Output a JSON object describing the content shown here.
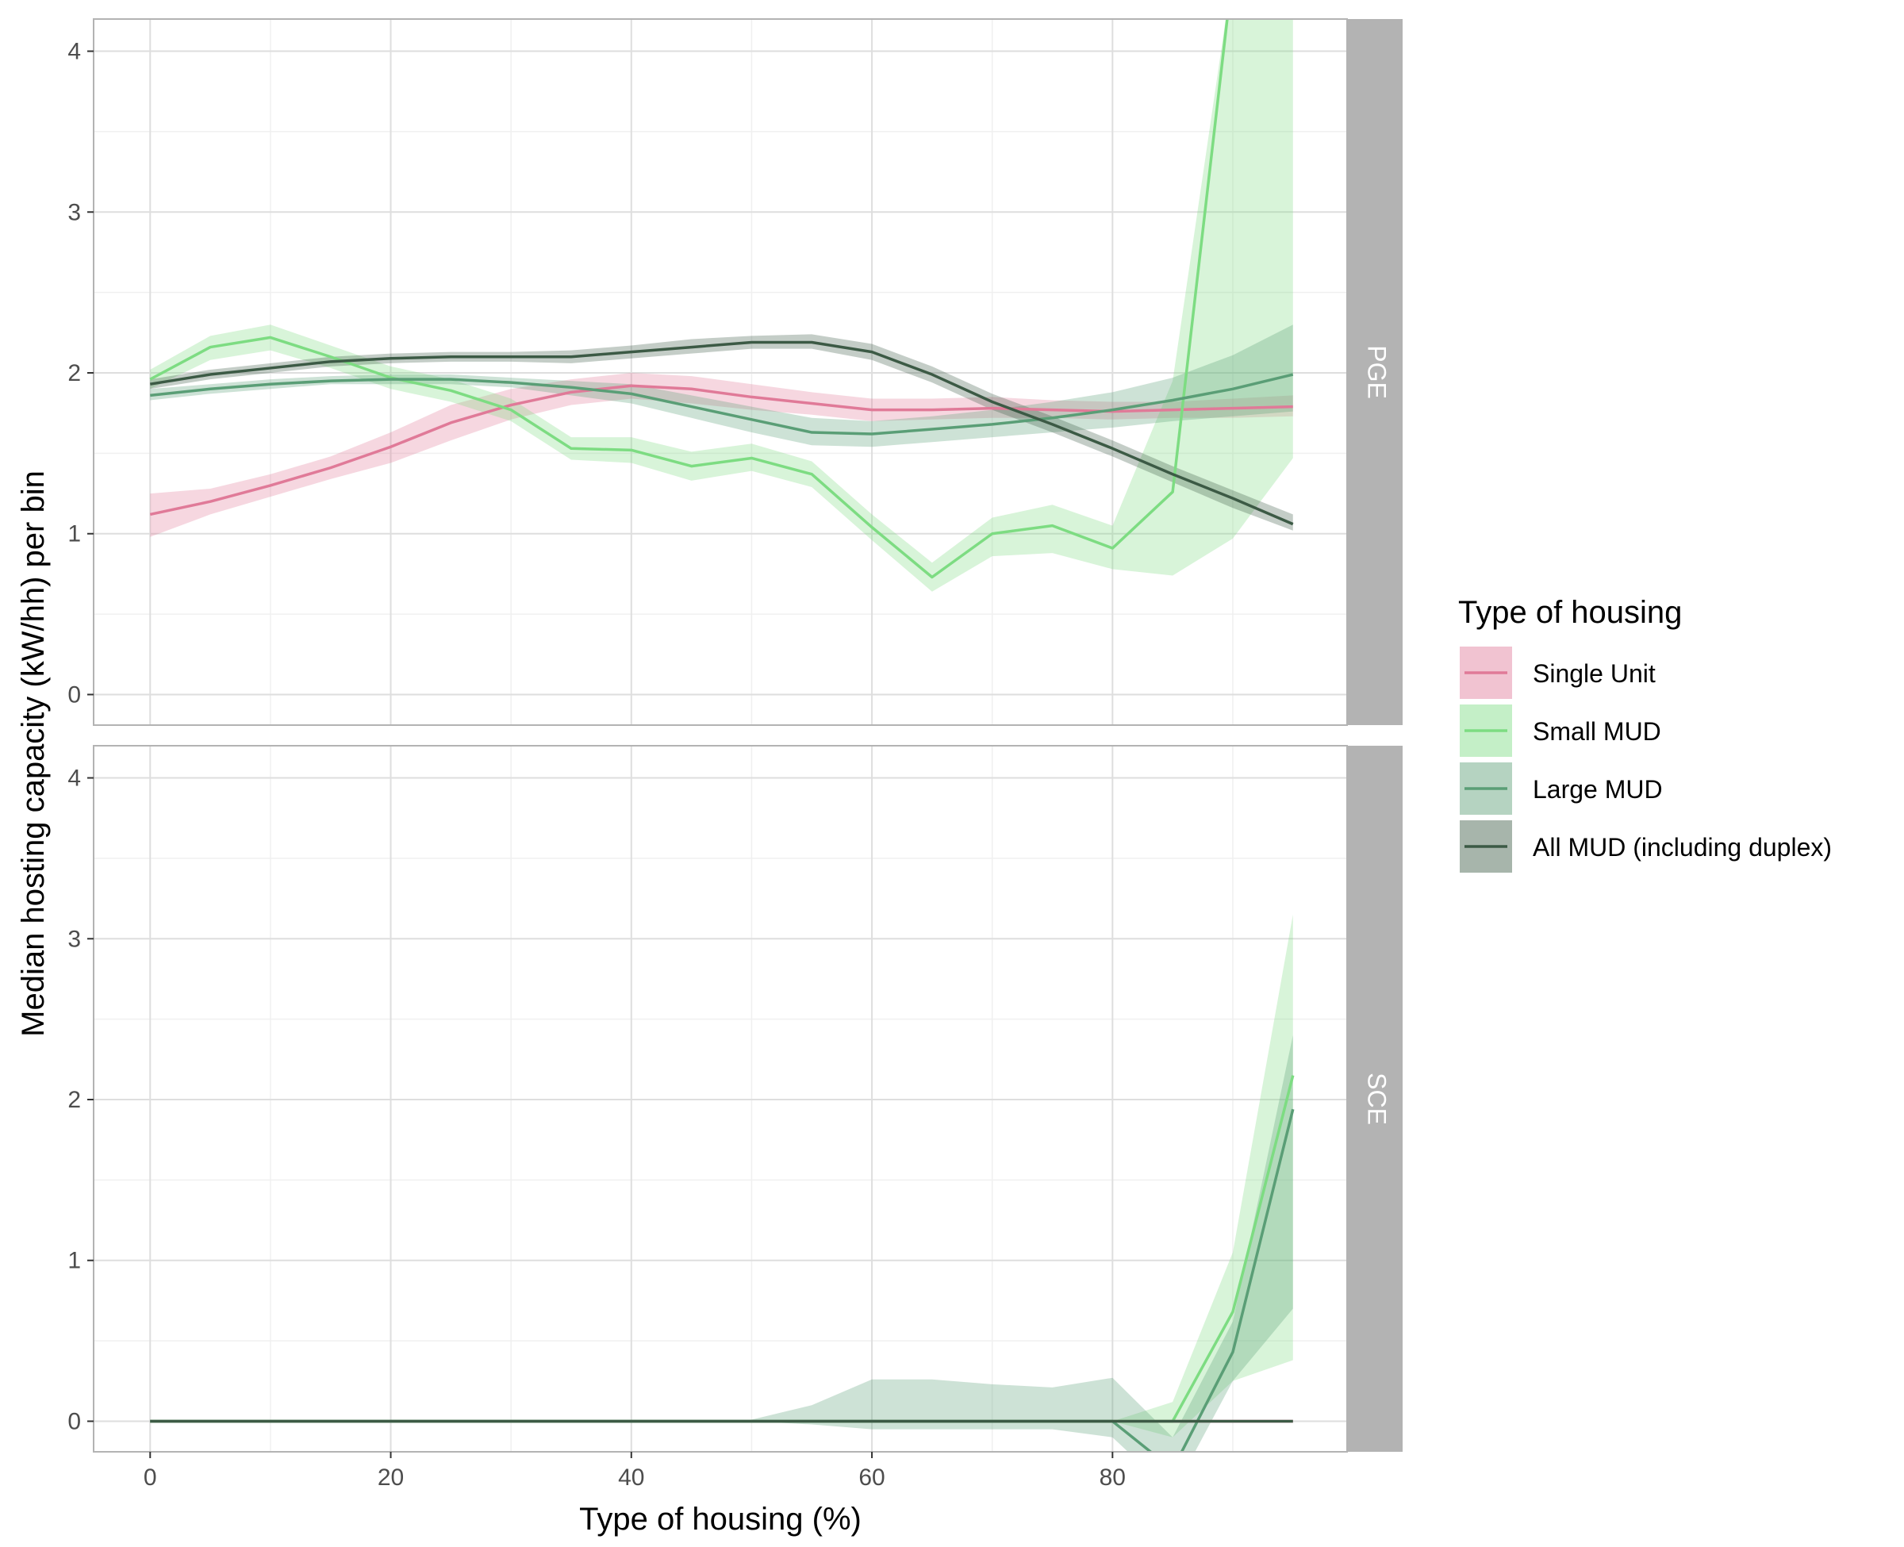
{
  "chart_data": {
    "type": "line",
    "xlabel": "Type of housing (%)",
    "ylabel": "Median hosting capacity (kW/hh) per bin",
    "xlim": [
      -4.7,
      99.5
    ],
    "ylim": [
      -0.19,
      4.2
    ],
    "x_ticks": [
      0,
      20,
      40,
      60,
      80
    ],
    "y_ticks": [
      0,
      1,
      2,
      3,
      4
    ],
    "grid": true,
    "legend": {
      "title": "Type of housing",
      "position": "right",
      "entries": [
        "Single Unit",
        "Small MUD",
        "Large MUD",
        "All MUD (including duplex)"
      ]
    },
    "colors": {
      "Single Unit": "#e07a98",
      "Small MUD": "#7ddc82",
      "Large MUD": "#5a9e76",
      "All MUD (including duplex)": "#3c5a45"
    },
    "x": [
      0,
      5,
      10,
      15,
      20,
      25,
      30,
      35,
      40,
      45,
      50,
      55,
      60,
      65,
      70,
      75,
      80,
      85,
      90,
      95
    ],
    "panels": [
      {
        "facet": "PGE",
        "series": [
          {
            "name": "Single Unit",
            "values": [
              1.12,
              1.2,
              1.3,
              1.41,
              1.54,
              1.69,
              1.8,
              1.88,
              1.92,
              1.9,
              1.85,
              1.81,
              1.77,
              1.77,
              1.78,
              1.77,
              1.76,
              1.77,
              1.78,
              1.79
            ],
            "lower": [
              0.98,
              1.12,
              1.23,
              1.34,
              1.44,
              1.58,
              1.71,
              1.8,
              1.84,
              1.81,
              1.77,
              1.74,
              1.7,
              1.71,
              1.72,
              1.72,
              1.71,
              1.72,
              1.72,
              1.73
            ],
            "upper": [
              1.25,
              1.28,
              1.37,
              1.48,
              1.63,
              1.8,
              1.9,
              1.96,
              2.0,
              1.98,
              1.93,
              1.88,
              1.84,
              1.84,
              1.85,
              1.83,
              1.82,
              1.82,
              1.84,
              1.86
            ]
          },
          {
            "name": "Small MUD",
            "values": [
              1.96,
              2.16,
              2.22,
              2.1,
              1.97,
              1.89,
              1.77,
              1.53,
              1.52,
              1.42,
              1.47,
              1.37,
              1.04,
              0.73,
              1.0,
              1.05,
              0.91,
              1.26,
              4.5,
              4.5
            ],
            "lower": [
              1.9,
              2.08,
              2.14,
              2.03,
              1.9,
              1.82,
              1.7,
              1.46,
              1.44,
              1.33,
              1.39,
              1.29,
              0.96,
              0.64,
              0.86,
              0.88,
              0.78,
              0.74,
              0.97,
              1.47
            ],
            "upper": [
              2.02,
              2.23,
              2.3,
              2.17,
              2.04,
              1.96,
              1.84,
              1.6,
              1.6,
              1.51,
              1.56,
              1.45,
              1.12,
              0.82,
              1.1,
              1.18,
              1.05,
              1.95,
              4.5,
              4.5
            ]
          },
          {
            "name": "Large MUD",
            "values": [
              1.86,
              1.9,
              1.93,
              1.95,
              1.96,
              1.96,
              1.94,
              1.91,
              1.87,
              1.79,
              1.71,
              1.63,
              1.62,
              1.65,
              1.68,
              1.72,
              1.77,
              1.83,
              1.9,
              1.99
            ],
            "lower": [
              1.83,
              1.87,
              1.9,
              1.93,
              1.93,
              1.93,
              1.91,
              1.86,
              1.81,
              1.72,
              1.63,
              1.55,
              1.54,
              1.57,
              1.6,
              1.63,
              1.66,
              1.7,
              1.73,
              1.76
            ],
            "upper": [
              1.9,
              1.93,
              1.96,
              1.98,
              1.99,
              1.99,
              1.97,
              1.95,
              1.93,
              1.86,
              1.79,
              1.72,
              1.7,
              1.73,
              1.77,
              1.82,
              1.88,
              1.97,
              2.11,
              2.3
            ]
          },
          {
            "name": "All MUD (including duplex)",
            "values": [
              1.93,
              1.99,
              2.03,
              2.07,
              2.09,
              2.1,
              2.1,
              2.1,
              2.13,
              2.16,
              2.19,
              2.19,
              2.13,
              1.99,
              1.82,
              1.68,
              1.53,
              1.37,
              1.22,
              1.06
            ],
            "lower": [
              1.9,
              1.96,
              2.0,
              2.04,
              2.06,
              2.07,
              2.07,
              2.06,
              2.09,
              2.12,
              2.15,
              2.15,
              2.08,
              1.94,
              1.77,
              1.63,
              1.48,
              1.32,
              1.16,
              1.02
            ],
            "upper": [
              1.96,
              2.02,
              2.06,
              2.1,
              2.12,
              2.13,
              2.13,
              2.14,
              2.17,
              2.21,
              2.23,
              2.24,
              2.18,
              2.04,
              1.87,
              1.73,
              1.58,
              1.42,
              1.27,
              1.12
            ]
          }
        ]
      },
      {
        "facet": "SCE",
        "series": [
          {
            "name": "Single Unit",
            "values": [
              0,
              0,
              0,
              0,
              0,
              0,
              0,
              0,
              0,
              0,
              0,
              0,
              0,
              0,
              0,
              0,
              0,
              0,
              0,
              0
            ],
            "lower": [
              0,
              0,
              0,
              0,
              0,
              0,
              0,
              0,
              0,
              0,
              0,
              0,
              0,
              0,
              0,
              0,
              0,
              0,
              0,
              0
            ],
            "upper": [
              0,
              0,
              0,
              0,
              0,
              0,
              0,
              0,
              0,
              0,
              0,
              0,
              0,
              0,
              0,
              0,
              0,
              0,
              0,
              0
            ]
          },
          {
            "name": "Small MUD",
            "values": [
              0,
              0,
              0,
              0,
              0,
              0,
              0,
              0,
              0,
              0,
              0,
              0,
              0,
              0,
              0,
              0,
              0,
              0,
              0.68,
              2.15
            ],
            "lower": [
              0,
              0,
              0,
              0,
              0,
              0,
              0,
              0,
              0,
              0,
              0,
              0,
              0,
              0,
              0,
              0,
              0,
              -0.1,
              0.25,
              0.38
            ],
            "upper": [
              0,
              0,
              0,
              0,
              0,
              0,
              0,
              0,
              0,
              0,
              0,
              0,
              0,
              0,
              0,
              0,
              0,
              0.12,
              1.05,
              3.15
            ]
          },
          {
            "name": "Large MUD",
            "values": [
              0,
              0,
              0,
              0,
              0,
              0,
              0,
              0,
              0,
              0,
              0,
              0,
              0,
              0,
              0,
              0,
              0,
              -0.3,
              0.43,
              1.94
            ],
            "lower": [
              0,
              0,
              0,
              0,
              0,
              0,
              0,
              0,
              0,
              0,
              0,
              -0.02,
              -0.05,
              -0.05,
              -0.05,
              -0.05,
              -0.1,
              -0.45,
              0.25,
              0.7
            ],
            "upper": [
              0,
              0,
              0,
              0,
              0,
              0,
              0,
              0,
              0,
              0,
              0.01,
              0.1,
              0.26,
              0.26,
              0.23,
              0.21,
              0.27,
              -0.1,
              0.62,
              2.4
            ]
          },
          {
            "name": "All MUD (including duplex)",
            "values": [
              0,
              0,
              0,
              0,
              0,
              0,
              0,
              0,
              0,
              0,
              0,
              0,
              0,
              0,
              0,
              0,
              0,
              0,
              0,
              0
            ],
            "lower": [
              0,
              0,
              0,
              0,
              0,
              0,
              0,
              0,
              0,
              0,
              0,
              0,
              0,
              0,
              0,
              0,
              0,
              0,
              0,
              0
            ],
            "upper": [
              0,
              0,
              0,
              0,
              0,
              0,
              0,
              0,
              0,
              0,
              0,
              0,
              0,
              0,
              0,
              0,
              0,
              0,
              0,
              0
            ]
          }
        ]
      }
    ]
  }
}
